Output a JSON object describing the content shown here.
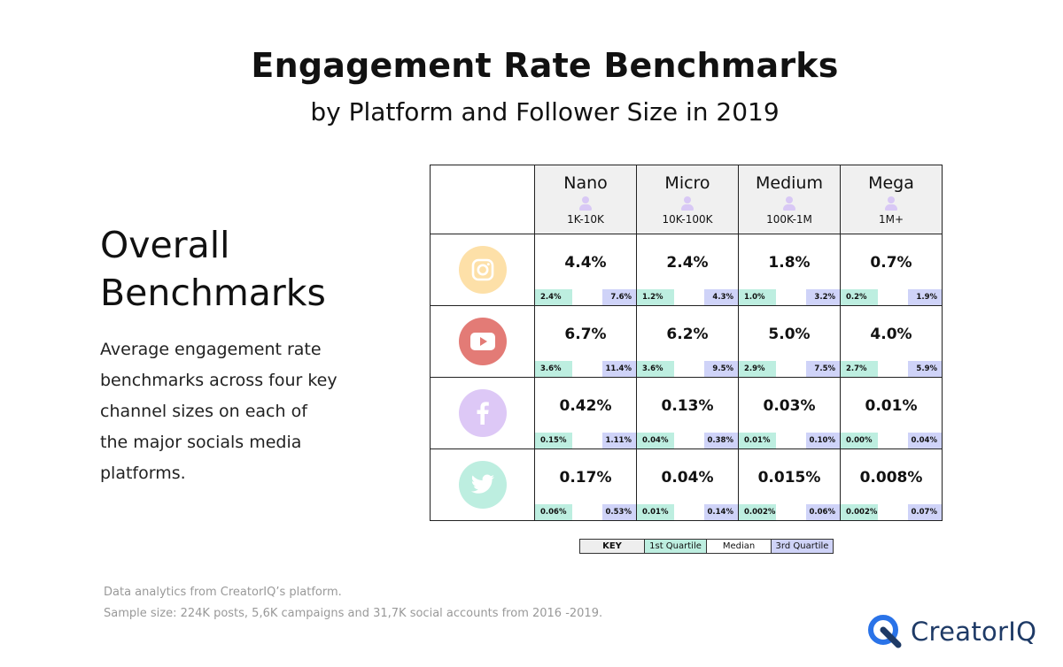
{
  "title": "Engagement Rate Benchmarks",
  "subtitle": "by Platform and Follower Size in 2019",
  "left": {
    "heading_line1": "Overall",
    "heading_line2": "Benchmarks",
    "description": "Average engagement rate benchmarks across four key channel sizes on each of the major socials media platforms."
  },
  "chart_data": {
    "type": "table",
    "title": "Engagement Rate Benchmarks",
    "subtitle": "by Platform and Follower Size in 2019",
    "columns": [
      {
        "name": "Nano",
        "range": "1K-10K"
      },
      {
        "name": "Micro",
        "range": "10K-100K"
      },
      {
        "name": "Medium",
        "range": "100K-1M"
      },
      {
        "name": "Mega",
        "range": "1M+"
      }
    ],
    "rows": [
      {
        "platform": "Instagram",
        "icon": "instagram-icon",
        "color": "#fde0a8",
        "cells": [
          {
            "median": "4.4%",
            "q1": "2.4%",
            "q3": "7.6%"
          },
          {
            "median": "2.4%",
            "q1": "1.2%",
            "q3": "4.3%"
          },
          {
            "median": "1.8%",
            "q1": "1.0%",
            "q3": "3.2%"
          },
          {
            "median": "0.7%",
            "q1": "0.2%",
            "q3": "1.9%"
          }
        ]
      },
      {
        "platform": "YouTube",
        "icon": "youtube-icon",
        "color": "#e37b76",
        "cells": [
          {
            "median": "6.7%",
            "q1": "3.6%",
            "q3": "11.4%"
          },
          {
            "median": "6.2%",
            "q1": "3.6%",
            "q3": "9.5%"
          },
          {
            "median": "5.0%",
            "q1": "2.9%",
            "q3": "7.5%"
          },
          {
            "median": "4.0%",
            "q1": "2.7%",
            "q3": "5.9%"
          }
        ]
      },
      {
        "platform": "Facebook",
        "icon": "facebook-icon",
        "color": "#ddc8f6",
        "cells": [
          {
            "median": "0.42%",
            "q1": "0.15%",
            "q3": "1.11%"
          },
          {
            "median": "0.13%",
            "q1": "0.04%",
            "q3": "0.38%"
          },
          {
            "median": "0.03%",
            "q1": "0.01%",
            "q3": "0.10%"
          },
          {
            "median": "0.01%",
            "q1": "0.00%",
            "q3": "0.04%"
          }
        ]
      },
      {
        "platform": "Twitter",
        "icon": "twitter-icon",
        "color": "#bdeee0",
        "cells": [
          {
            "median": "0.17%",
            "q1": "0.06%",
            "q3": "0.53%"
          },
          {
            "median": "0.04%",
            "q1": "0.01%",
            "q3": "0.14%"
          },
          {
            "median": "0.015%",
            "q1": "0.002%",
            "q3": "0.06%"
          },
          {
            "median": "0.008%",
            "q1": "0.002%",
            "q3": "0.07%"
          }
        ]
      }
    ],
    "key": {
      "label": "KEY",
      "q1": "1st Quartile",
      "median": "Median",
      "q3": "3rd Quartile"
    }
  },
  "colors": {
    "q1": "#bdeee0",
    "q3": "#cfd3f8",
    "header_bg": "#f0f0f0",
    "logo": "#1e3a66"
  },
  "footnotes": {
    "line1": "Data analytics from CreatorIQ’s platform.",
    "line2": "Sample size: 224K posts, 5,6K campaigns and 31,7K social accounts from 2016 -2019."
  },
  "logo": {
    "text": "CreatorIQ"
  }
}
